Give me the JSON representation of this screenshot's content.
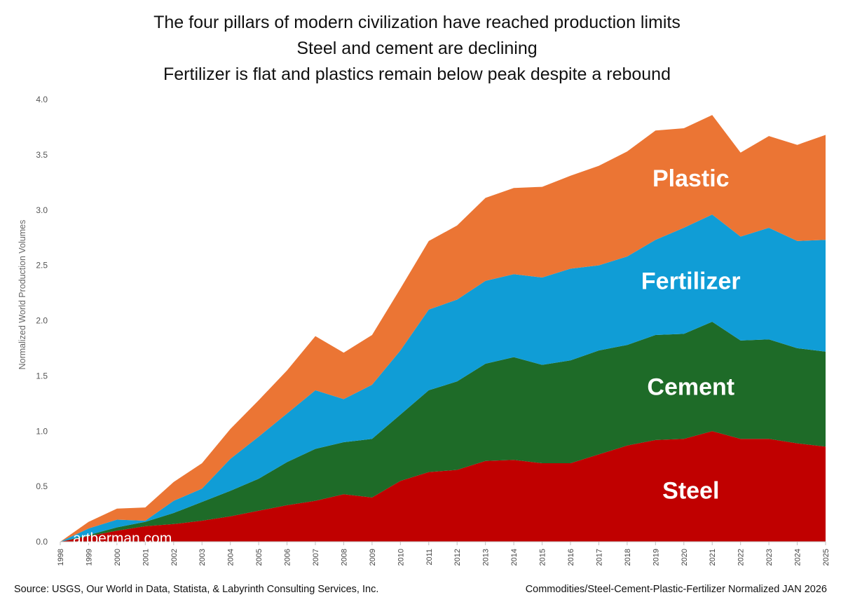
{
  "titles": {
    "line1": "The four pillars of modern civilization have reached production limits",
    "line2": "Steel and cement are declining",
    "line3": "Fertilizer is flat and plastics remain below peak despite a rebound"
  },
  "watermark": "artberman.com",
  "footer": {
    "source": "Source: USGS, Our World in Data, Statista, & Labyrinth Consulting Services, Inc.",
    "note": "Commodities/Steel-Cement-Plastic-Fertilizer Normalized JAN 2026"
  },
  "chart_data": {
    "type": "area",
    "stacked": true,
    "ylabel": "Normalized World Production Volumes",
    "xlabel": "",
    "ylim": [
      0,
      4.0
    ],
    "yticks": [
      "0.0",
      "0.5",
      "1.0",
      "1.5",
      "2.0",
      "2.5",
      "3.0",
      "3.5",
      "4.0"
    ],
    "x": [
      "1998",
      "1999",
      "2000",
      "2001",
      "2002",
      "2003",
      "2004",
      "2005",
      "2006",
      "2007",
      "2008",
      "2009",
      "2010",
      "2011",
      "2012",
      "2013",
      "2014",
      "2015",
      "2016",
      "2017",
      "2018",
      "2019",
      "2020",
      "2021",
      "2022",
      "2023",
      "2024",
      "2025"
    ],
    "grid": false,
    "legend": "labels-on-areas",
    "series": [
      {
        "name": "Steel",
        "color": "#c00000",
        "values": [
          0.0,
          0.05,
          0.1,
          0.14,
          0.16,
          0.19,
          0.23,
          0.28,
          0.33,
          0.37,
          0.43,
          0.4,
          0.55,
          0.63,
          0.65,
          0.73,
          0.74,
          0.71,
          0.71,
          0.79,
          0.87,
          0.92,
          0.93,
          1.0,
          0.93,
          0.93,
          0.89,
          0.86
        ]
      },
      {
        "name": "Cement",
        "color": "#1e6b28",
        "values": [
          0.0,
          0.01,
          0.03,
          0.04,
          0.1,
          0.17,
          0.23,
          0.29,
          0.39,
          0.47,
          0.47,
          0.53,
          0.6,
          0.74,
          0.8,
          0.88,
          0.93,
          0.89,
          0.93,
          0.94,
          0.91,
          0.95,
          0.95,
          0.99,
          0.89,
          0.9,
          0.86,
          0.86
        ]
      },
      {
        "name": "Fertilizer",
        "color": "#109dd6",
        "values": [
          0.0,
          0.06,
          0.07,
          0.01,
          0.11,
          0.12,
          0.29,
          0.38,
          0.44,
          0.53,
          0.39,
          0.49,
          0.58,
          0.73,
          0.74,
          0.75,
          0.75,
          0.79,
          0.83,
          0.77,
          0.8,
          0.86,
          0.96,
          0.97,
          0.94,
          1.01,
          0.97,
          1.01
        ]
      },
      {
        "name": "Plastic",
        "color": "#eb7534",
        "values": [
          0.0,
          0.06,
          0.1,
          0.12,
          0.17,
          0.23,
          0.27,
          0.33,
          0.39,
          0.49,
          0.42,
          0.45,
          0.56,
          0.62,
          0.67,
          0.75,
          0.78,
          0.82,
          0.84,
          0.9,
          0.95,
          0.99,
          0.9,
          0.9,
          0.76,
          0.83,
          0.87,
          0.95
        ]
      }
    ],
    "area_labels": [
      "Steel",
      "Cement",
      "Fertilizer",
      "Plastic"
    ]
  }
}
